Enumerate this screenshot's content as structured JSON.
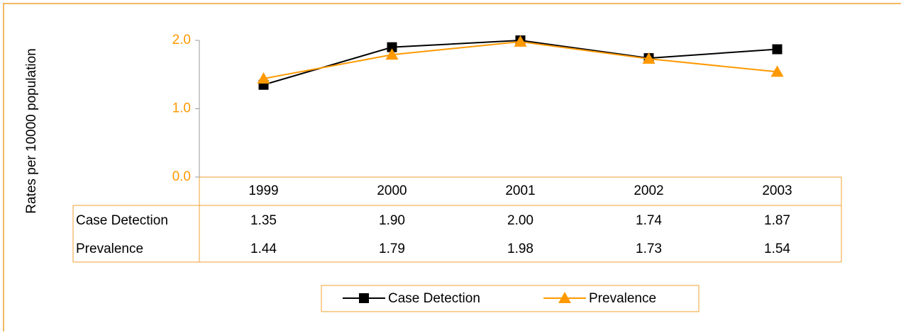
{
  "chart_data": {
    "type": "line",
    "y_label": "Rates per 10000 population",
    "categories": [
      "1999",
      "2000",
      "2001",
      "2002",
      "2003"
    ],
    "series": [
      {
        "name": "Case Detection",
        "color": "#000000",
        "marker": "square",
        "values": [
          1.35,
          1.9,
          2.0,
          1.74,
          1.87
        ],
        "value_labels": [
          "1.35",
          "1.90",
          "2.00",
          "1.74",
          "1.87"
        ]
      },
      {
        "name": "Prevalence",
        "color": "#ff9900",
        "marker": "triangle",
        "values": [
          1.44,
          1.79,
          1.98,
          1.73,
          1.54
        ],
        "value_labels": [
          "1.44",
          "1.79",
          "1.98",
          "1.73",
          "1.54"
        ]
      }
    ],
    "ylim": [
      0,
      2
    ],
    "yticks": [
      {
        "value": 0,
        "label": "0.0"
      },
      {
        "value": 1,
        "label": "1.0"
      },
      {
        "value": 2,
        "label": "2.0"
      }
    ],
    "legend": "bottom",
    "tick_color": "#ff9900"
  }
}
